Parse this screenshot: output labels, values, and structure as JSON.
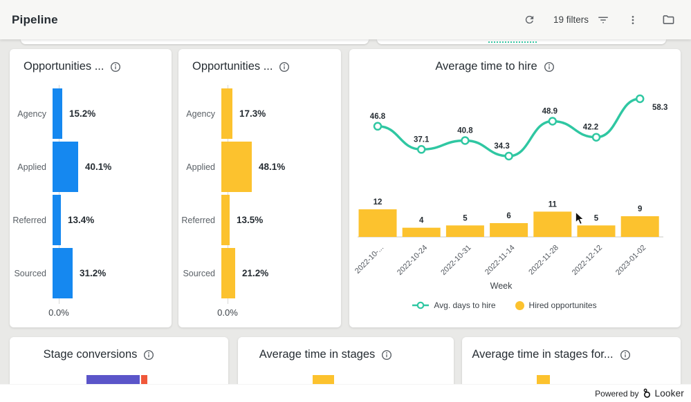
{
  "header": {
    "title": "Pipeline",
    "filters_label": "19 filters"
  },
  "cards": {
    "opps1": {
      "title": "Opportunities ...",
      "axis_label": "0.0%",
      "bar_color": "#1588f0",
      "chart_data": {
        "type": "bar",
        "orientation": "horizontal",
        "categories": [
          "Agency",
          "Applied",
          "Referred",
          "Sourced"
        ],
        "values": [
          15.2,
          40.1,
          13.4,
          31.2
        ],
        "value_labels": [
          "15.2%",
          "40.1%",
          "13.4%",
          "31.2%"
        ],
        "x_axis_start_label": "0.0%"
      }
    },
    "opps2": {
      "title": "Opportunities ...",
      "axis_label": "0.0%",
      "bar_color": "#fcc22e",
      "chart_data": {
        "type": "bar",
        "orientation": "horizontal",
        "categories": [
          "Agency",
          "Applied",
          "Referred",
          "Sourced"
        ],
        "values": [
          17.3,
          48.1,
          13.5,
          21.2
        ],
        "value_labels": [
          "17.3%",
          "48.1%",
          "13.5%",
          "21.2%"
        ],
        "x_axis_start_label": "0.0%"
      }
    },
    "avg_time": {
      "title": "Average time to hire",
      "xlabel": "Week",
      "legend": [
        {
          "label": "Avg. days to hire",
          "color": "#2fc7a2",
          "marker": "open-circle-line"
        },
        {
          "label": "Hired opportunites",
          "color": "#fcc22e",
          "marker": "filled-circle"
        }
      ],
      "chart_data": {
        "type": "combo",
        "categories": [
          "2022-10-...",
          "2022-10-24",
          "2022-10-31",
          "2022-11-14",
          "2022-11-28",
          "2022-12-12",
          "2023-01-02"
        ],
        "series": [
          {
            "name": "Avg. days to hire",
            "type": "line",
            "color": "#2fc7a2",
            "values": [
              46.8,
              37.1,
              40.8,
              34.3,
              48.9,
              42.2,
              58.3
            ]
          },
          {
            "name": "Hired opportunites",
            "type": "bar",
            "color": "#fcc22e",
            "values": [
              12,
              4,
              5,
              6,
              11,
              5,
              9
            ]
          }
        ],
        "xlabel": "Week",
        "legend_position": "bottom",
        "grid": false
      }
    },
    "stage_conversions": {
      "title": "Stage conversions",
      "chart_data": {
        "type": "bar",
        "partial": true,
        "segment_colors": [
          "#5b55c9",
          "#f0583a"
        ]
      }
    },
    "avg_stages": {
      "title": "Average time in stages",
      "chart_data": {
        "type": "bar",
        "partial": true,
        "bar_color": "#fcc22e"
      }
    },
    "avg_stages_for": {
      "title": "Average time in stages for...",
      "chart_data": {
        "type": "bar",
        "partial": true,
        "bar_color": "#fcc22e"
      }
    }
  },
  "footer": {
    "powered_by": "Powered by",
    "brand": "Looker"
  }
}
